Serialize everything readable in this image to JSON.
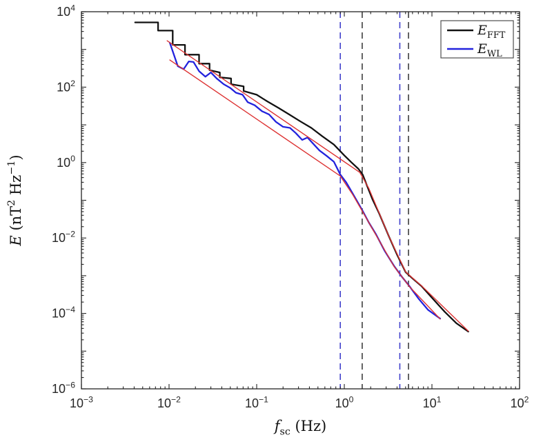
{
  "figure": {
    "background": "#ffffff",
    "axis_color": "#222222",
    "tick_label_color": "#262626"
  },
  "chart_data": {
    "type": "line",
    "title": "",
    "x_scale": "log",
    "y_scale": "log",
    "xlim_exp": [
      -3,
      2
    ],
    "ylim_exp": [
      -6,
      4
    ],
    "xtick_exponents": [
      -3,
      -2,
      -1,
      0,
      1,
      2
    ],
    "ytick_exponents": [
      -6,
      -4,
      -2,
      0,
      2,
      4
    ],
    "xlabel_segments": [
      {
        "t": "f",
        "style": "italic"
      },
      {
        "t": "sc",
        "style": "sub"
      },
      {
        "t": " (Hz)",
        "style": ""
      }
    ],
    "ylabel_segments": [
      {
        "t": "E",
        "style": "italic"
      },
      {
        "t": " (nT",
        "style": ""
      },
      {
        "t": "2",
        "style": "sup"
      },
      {
        "t": " Hz",
        "style": ""
      },
      {
        "t": "−1",
        "style": "sup"
      },
      {
        "t": ")",
        "style": ""
      }
    ],
    "series": [
      {
        "name": "E_FFT",
        "color": "#111111",
        "width": 2.3,
        "points": [
          [
            0.0041,
            5200
          ],
          [
            0.0075,
            5200
          ],
          [
            0.0075,
            3160
          ],
          [
            0.011,
            3160
          ],
          [
            0.011,
            1320
          ],
          [
            0.0152,
            1320
          ],
          [
            0.0152,
            725
          ],
          [
            0.022,
            725
          ],
          [
            0.022,
            420
          ],
          [
            0.029,
            420
          ],
          [
            0.029,
            282
          ],
          [
            0.038,
            245
          ],
          [
            0.038,
            182
          ],
          [
            0.051,
            170
          ],
          [
            0.051,
            120
          ],
          [
            0.071,
            105
          ],
          [
            0.071,
            79
          ],
          [
            0.1,
            63
          ],
          [
            0.132,
            42
          ],
          [
            0.178,
            28
          ],
          [
            0.234,
            19
          ],
          [
            0.316,
            12.3
          ],
          [
            0.42,
            8.3
          ],
          [
            0.56,
            5.0
          ],
          [
            0.76,
            3.0
          ],
          [
            1.0,
            1.55
          ],
          [
            1.2,
            1.02
          ],
          [
            1.45,
            0.68
          ],
          [
            1.62,
            0.48
          ],
          [
            1.85,
            0.22
          ],
          [
            2.1,
            0.105
          ],
          [
            2.5,
            0.045
          ],
          [
            3.2,
            0.0115
          ],
          [
            4.0,
            0.0036
          ],
          [
            5.0,
            0.00125
          ],
          [
            6.0,
            0.00085
          ],
          [
            7.6,
            0.00053
          ],
          [
            10.0,
            0.00026
          ],
          [
            14.0,
            0.00011
          ],
          [
            19.0,
            5.5e-05
          ],
          [
            26.0,
            3.3e-05
          ]
        ]
      },
      {
        "name": "E_WL",
        "color": "#2222dd",
        "width": 2.3,
        "points": [
          [
            0.0102,
            1510
          ],
          [
            0.0112,
            790
          ],
          [
            0.0126,
            360
          ],
          [
            0.0147,
            300
          ],
          [
            0.0168,
            480
          ],
          [
            0.019,
            465
          ],
          [
            0.022,
            265
          ],
          [
            0.026,
            190
          ],
          [
            0.03,
            245
          ],
          [
            0.035,
            170
          ],
          [
            0.042,
            120
          ],
          [
            0.05,
            95
          ],
          [
            0.058,
            71
          ],
          [
            0.069,
            63
          ],
          [
            0.079,
            40
          ],
          [
            0.095,
            33
          ],
          [
            0.115,
            23
          ],
          [
            0.138,
            19
          ],
          [
            0.166,
            12
          ],
          [
            0.2,
            8.9
          ],
          [
            0.24,
            8.3
          ],
          [
            0.28,
            6.0
          ],
          [
            0.33,
            4.0
          ],
          [
            0.38,
            4.6
          ],
          [
            0.44,
            3.2
          ],
          [
            0.52,
            2.1
          ],
          [
            0.63,
            1.5
          ],
          [
            0.76,
            1.05
          ],
          [
            0.9,
            0.48
          ],
          [
            1.05,
            0.3
          ],
          [
            1.25,
            0.15
          ],
          [
            1.6,
            0.055
          ],
          [
            1.9,
            0.026
          ],
          [
            2.3,
            0.0125
          ],
          [
            2.9,
            0.0045
          ],
          [
            3.7,
            0.0018
          ],
          [
            4.6,
            0.0009
          ],
          [
            5.6,
            0.00051
          ],
          [
            7.1,
            0.00024
          ],
          [
            9.0,
            0.000125
          ],
          [
            12.4,
            7.3e-05
          ]
        ]
      }
    ],
    "fits": [
      {
        "name": "fft-powerlaw-fit",
        "color": "#dd3333",
        "width": 1.4,
        "points": [
          [
            0.0095,
            1700
          ],
          [
            1.5,
            0.55
          ],
          [
            1.9,
            0.21
          ],
          [
            2.5,
            0.046
          ],
          [
            3.2,
            0.0115
          ],
          [
            5.0,
            0.00127
          ],
          [
            6.0,
            0.00087
          ],
          [
            7.6,
            0.00054
          ],
          [
            26.0,
            3.4e-05
          ]
        ]
      },
      {
        "name": "wl-powerlaw-fit",
        "color": "#dd3333",
        "width": 1.4,
        "points": [
          [
            0.0102,
            525
          ],
          [
            0.9,
            0.44
          ],
          [
            1.25,
            0.14
          ],
          [
            1.6,
            0.052
          ],
          [
            2.3,
            0.012
          ],
          [
            3.7,
            0.00175
          ],
          [
            5.6,
            0.0005
          ],
          [
            12.4,
            7.1e-05
          ]
        ]
      }
    ],
    "vlines": [
      {
        "f": 0.9,
        "color": "#4040cc",
        "style": "dashed"
      },
      {
        "f": 1.6,
        "color": "#3c3c3c",
        "style": "dashed"
      },
      {
        "f": 4.3,
        "color": "#4040cc",
        "style": "dashed"
      },
      {
        "f": 5.4,
        "color": "#3c3c3c",
        "style": "dashed"
      }
    ],
    "legend": {
      "position": "top-right",
      "entries": [
        {
          "segments": [
            {
              "t": "E",
              "style": "italic"
            },
            {
              "t": "FFT",
              "style": "sub"
            }
          ],
          "color": "#111111"
        },
        {
          "segments": [
            {
              "t": "E",
              "style": "italic"
            },
            {
              "t": "WL",
              "style": "sub"
            }
          ],
          "color": "#2222dd"
        }
      ]
    }
  }
}
